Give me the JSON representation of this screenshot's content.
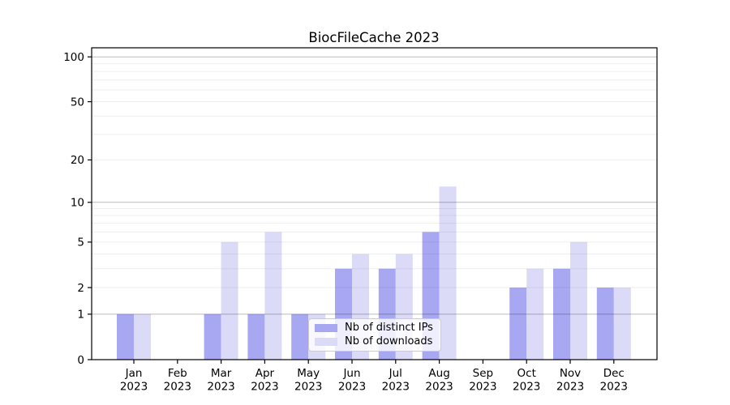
{
  "title": "BiocFileCache 2023",
  "legend": {
    "items": [
      {
        "label": "Nb of distinct IPs",
        "color": "#a8a8f2"
      },
      {
        "label": "Nb of downloads",
        "color": "#dbdbf8"
      }
    ]
  },
  "chart_data": {
    "type": "bar",
    "title": "BiocFileCache 2023",
    "categories": [
      "Jan 2023",
      "Feb 2023",
      "Mar 2023",
      "Apr 2023",
      "May 2023",
      "Jun 2023",
      "Jul 2023",
      "Aug 2023",
      "Sep 2023",
      "Oct 2023",
      "Nov 2023",
      "Dec 2023"
    ],
    "x_tick_months": [
      "Jan",
      "Feb",
      "Mar",
      "Apr",
      "May",
      "Jun",
      "Jul",
      "Aug",
      "Sep",
      "Oct",
      "Nov",
      "Dec"
    ],
    "x_tick_year": "2023",
    "series": [
      {
        "name": "Nb of distinct IPs",
        "color": "#a8a8f2",
        "values": [
          1,
          0,
          1,
          1,
          1,
          3,
          3,
          6,
          0,
          2,
          3,
          2
        ]
      },
      {
        "name": "Nb of downloads",
        "color": "#dbdbf8",
        "values": [
          1,
          0,
          5,
          6,
          1,
          4,
          4,
          13,
          0,
          3,
          5,
          2
        ]
      }
    ],
    "y_scale": "log1p",
    "ylim": [
      0,
      115
    ],
    "y_ticks": [
      0,
      1,
      2,
      5,
      10,
      20,
      50,
      100
    ],
    "y_major_gridlines": [
      1,
      10,
      100
    ],
    "y_light_gridlines": [
      2,
      3,
      4,
      5,
      6,
      7,
      8,
      9,
      20,
      30,
      40,
      60,
      70,
      80,
      90,
      50
    ],
    "grid": true,
    "legend_position": "lower-center",
    "axis_color": "#000000",
    "grid_major_color": "rgba(0,0,0,0.27)",
    "grid_light_color": "rgba(0,0,0,0.065)"
  }
}
